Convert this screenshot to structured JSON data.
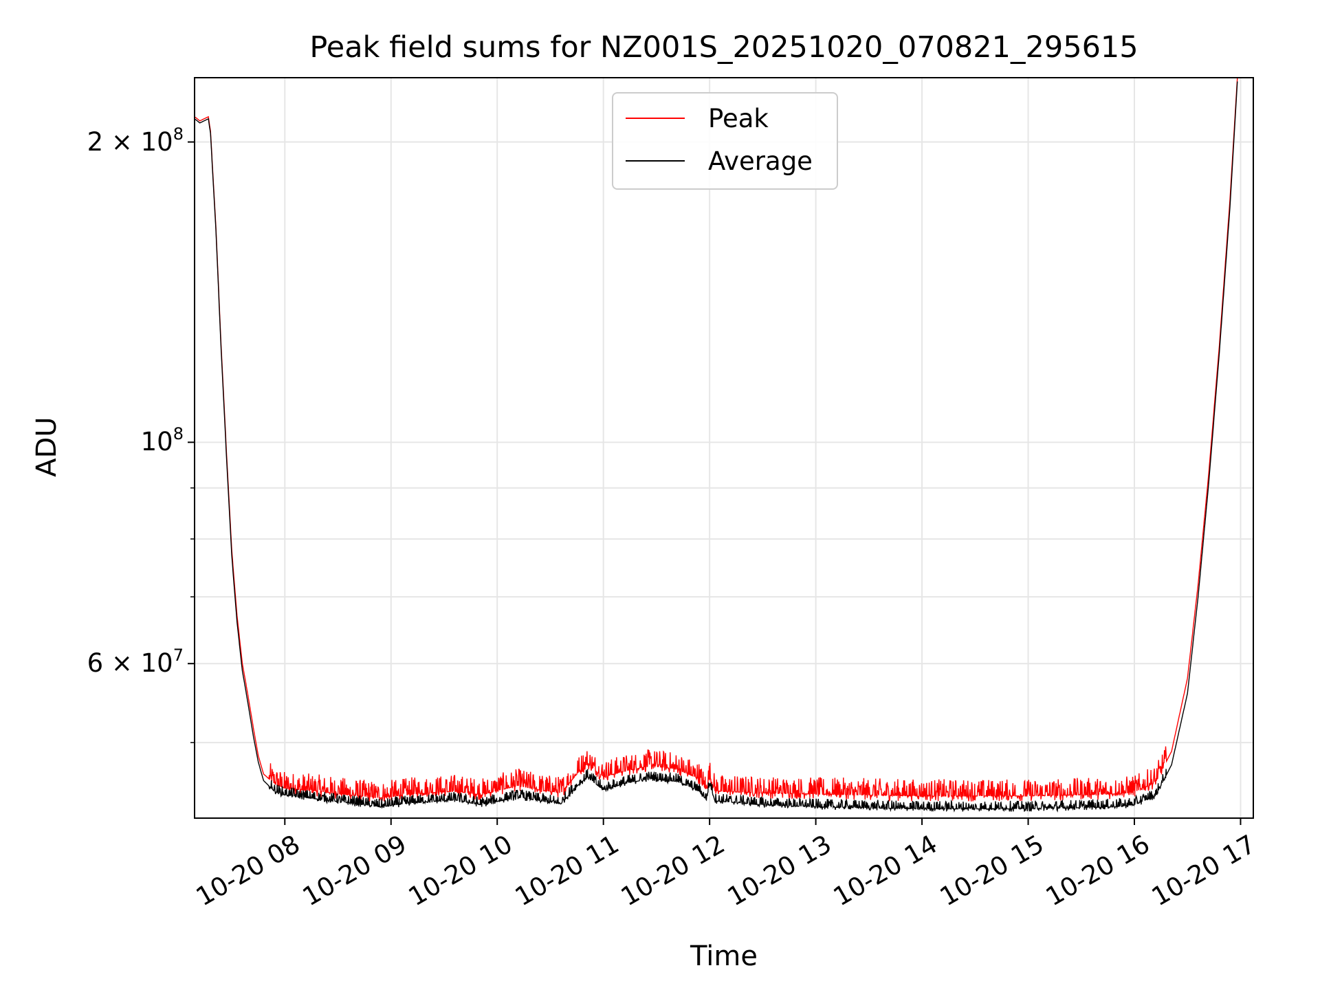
{
  "chart_data": {
    "type": "line",
    "title": "Peak field sums for NZ001S_20251020_070821_295615",
    "xlabel": "Time",
    "ylabel": "ADU",
    "yscale": "log",
    "x_range_hours": [
      7.15,
      17.12
    ],
    "ylim": [
      42000000,
      232000000
    ],
    "yticks_major": [
      {
        "value": 100000000,
        "label": "10",
        "exp": "8"
      },
      {
        "value": 200000000,
        "label": "2 × 10",
        "exp": "8"
      },
      {
        "value": 60000000,
        "label": "6 × 10",
        "exp": "7"
      }
    ],
    "xticks": [
      {
        "hour": 8,
        "label": "10-20 08"
      },
      {
        "hour": 9,
        "label": "10-20 09"
      },
      {
        "hour": 10,
        "label": "10-20 10"
      },
      {
        "hour": 11,
        "label": "10-20 11"
      },
      {
        "hour": 12,
        "label": "10-20 12"
      },
      {
        "hour": 13,
        "label": "10-20 13"
      },
      {
        "hour": 14,
        "label": "10-20 14"
      },
      {
        "hour": 15,
        "label": "10-20 15"
      },
      {
        "hour": 16,
        "label": "10-20 16"
      },
      {
        "hour": 17,
        "label": "10-20 17"
      }
    ],
    "grid": true,
    "legend_position": "upper-center",
    "series": [
      {
        "name": "Peak",
        "color": "#ff0000",
        "points": [
          [
            7.15,
            212000000
          ],
          [
            7.2,
            210000000
          ],
          [
            7.28,
            212000000
          ],
          [
            7.3,
            205000000
          ],
          [
            7.35,
            165000000
          ],
          [
            7.4,
            125000000
          ],
          [
            7.45,
            98000000
          ],
          [
            7.5,
            78000000
          ],
          [
            7.55,
            67000000
          ],
          [
            7.6,
            60000000
          ],
          [
            7.65,
            56000000
          ],
          [
            7.7,
            52000000
          ],
          [
            7.75,
            48500000
          ],
          [
            7.8,
            46500000
          ],
          [
            7.9,
            45500000
          ],
          [
            8.0,
            45000000
          ],
          [
            8.3,
            44700000
          ],
          [
            8.6,
            44300000
          ],
          [
            8.9,
            44000000
          ],
          [
            9.2,
            44400000
          ],
          [
            9.6,
            44700000
          ],
          [
            9.85,
            44300000
          ],
          [
            10.2,
            45300000
          ],
          [
            10.4,
            44800000
          ],
          [
            10.6,
            44500000
          ],
          [
            10.75,
            46500000
          ],
          [
            10.85,
            47600000
          ],
          [
            11.0,
            46200000
          ],
          [
            11.2,
            46800000
          ],
          [
            11.45,
            47400000
          ],
          [
            11.7,
            47000000
          ],
          [
            11.9,
            46000000
          ],
          [
            11.97,
            44800000
          ],
          [
            12.0,
            46300000
          ],
          [
            12.05,
            44700000
          ],
          [
            12.5,
            44500000
          ],
          [
            13.0,
            44400000
          ],
          [
            14.0,
            44200000
          ],
          [
            15.0,
            44200000
          ],
          [
            15.8,
            44400000
          ],
          [
            16.0,
            44600000
          ],
          [
            16.2,
            45600000
          ],
          [
            16.35,
            49000000
          ],
          [
            16.5,
            58000000
          ],
          [
            16.6,
            72000000
          ],
          [
            16.7,
            93000000
          ],
          [
            16.8,
            125000000
          ],
          [
            16.9,
            175000000
          ],
          [
            16.97,
            232000000
          ]
        ]
      },
      {
        "name": "Average",
        "color": "#000000",
        "points": [
          [
            7.15,
            211000000
          ],
          [
            7.2,
            209000000
          ],
          [
            7.28,
            211000000
          ],
          [
            7.3,
            204000000
          ],
          [
            7.35,
            164000000
          ],
          [
            7.4,
            124000000
          ],
          [
            7.45,
            97000000
          ],
          [
            7.5,
            77000000
          ],
          [
            7.55,
            66000000
          ],
          [
            7.6,
            59000000
          ],
          [
            7.65,
            55000000
          ],
          [
            7.7,
            51000000
          ],
          [
            7.75,
            47800000
          ],
          [
            7.8,
            45800000
          ],
          [
            7.9,
            44700000
          ],
          [
            8.0,
            44300000
          ],
          [
            8.3,
            43900000
          ],
          [
            8.6,
            43500000
          ],
          [
            8.9,
            43100000
          ],
          [
            9.2,
            43500000
          ],
          [
            9.6,
            43800000
          ],
          [
            9.85,
            43300000
          ],
          [
            10.2,
            44100000
          ],
          [
            10.4,
            43700000
          ],
          [
            10.6,
            43400000
          ],
          [
            10.75,
            45200000
          ],
          [
            10.85,
            46200000
          ],
          [
            11.0,
            44800000
          ],
          [
            11.2,
            45500000
          ],
          [
            11.45,
            46000000
          ],
          [
            11.7,
            45700000
          ],
          [
            11.9,
            44700000
          ],
          [
            11.97,
            43800000
          ],
          [
            12.0,
            45500000
          ],
          [
            12.05,
            43700000
          ],
          [
            12.5,
            43300000
          ],
          [
            13.0,
            43100000
          ],
          [
            14.0,
            42900000
          ],
          [
            15.0,
            42900000
          ],
          [
            15.8,
            43100000
          ],
          [
            16.0,
            43300000
          ],
          [
            16.2,
            44200000
          ],
          [
            16.35,
            47500000
          ],
          [
            16.5,
            56000000
          ],
          [
            16.6,
            70000000
          ],
          [
            16.7,
            91000000
          ],
          [
            16.8,
            123000000
          ],
          [
            16.9,
            172000000
          ],
          [
            16.97,
            230000000
          ]
        ]
      }
    ]
  }
}
